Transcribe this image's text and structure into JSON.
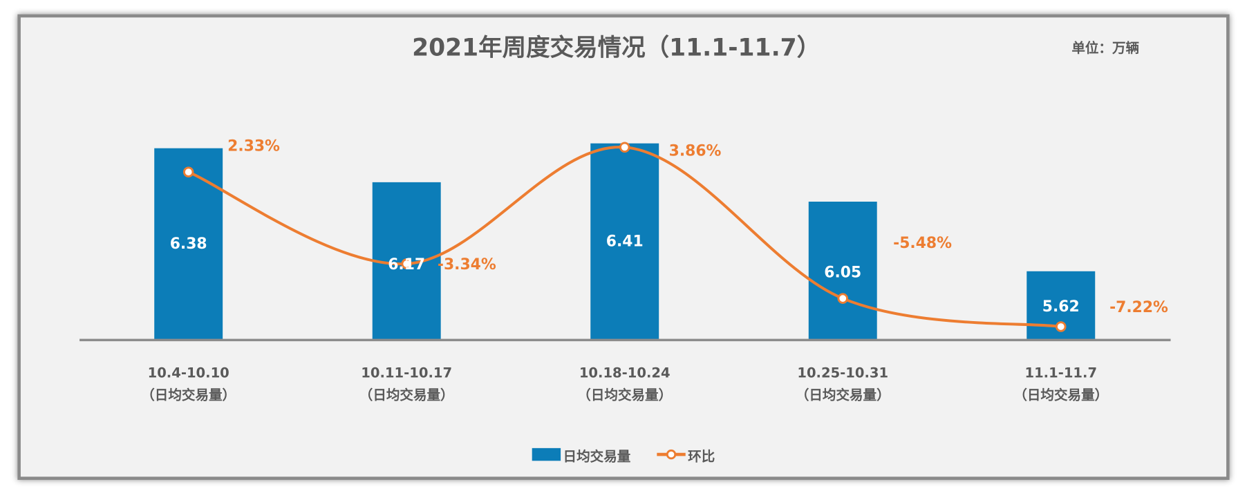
{
  "chart_data": {
    "type": "bar+line",
    "title": "2021年周度交易情况（11.1-11.7）",
    "unit_label": "单位：万辆",
    "categories": [
      {
        "line1": "10.4-10.10",
        "line2": "（日均交易量）"
      },
      {
        "line1": "10.11-10.17",
        "line2": "（日均交易量）"
      },
      {
        "line1": "10.18-10.24",
        "line2": "（日均交易量）"
      },
      {
        "line1": "10.25-10.31",
        "line2": "（日均交易量）"
      },
      {
        "line1": "11.1-11.7",
        "line2": "（日均交易量）"
      }
    ],
    "series": [
      {
        "name": "日均交易量",
        "type": "bar",
        "axis": "primary",
        "values": [
          6.38,
          6.17,
          6.41,
          6.05,
          5.62
        ],
        "labels": [
          "6.38",
          "6.17",
          "6.41",
          "6.05",
          "5.62"
        ],
        "color": "#0c7db8"
      },
      {
        "name": "环比",
        "type": "line",
        "smooth": true,
        "axis": "secondary",
        "values": [
          2.33,
          -3.34,
          3.86,
          -5.48,
          -7.22
        ],
        "labels": [
          "2.33%",
          "-3.34%",
          "3.86%",
          "-5.48%",
          "-7.22%"
        ],
        "color": "#ed7d31"
      }
    ],
    "ylim": [
      5.2,
      6.8
    ],
    "y2lim": [
      -8,
      8
    ],
    "grid": false,
    "axes_visible": false,
    "legend": "bottom-center",
    "colors": {
      "background": "#f2f2f2",
      "text": "#595959",
      "axis": "#8c8c8c"
    }
  }
}
